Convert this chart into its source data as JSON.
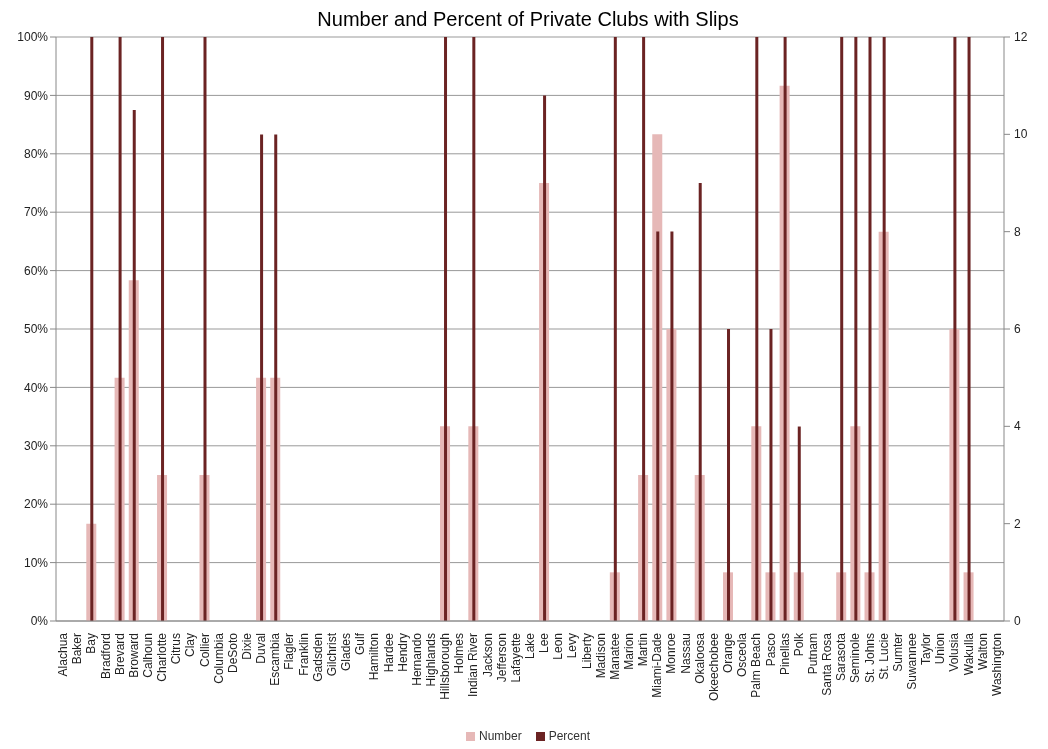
{
  "chart_data": {
    "type": "bar",
    "title": "Number and Percent of Private Clubs with Slips",
    "categories": [
      "Alachua",
      "Baker",
      "Bay",
      "Bradford",
      "Brevard",
      "Broward",
      "Calhoun",
      "Charlotte",
      "Citrus",
      "Clay",
      "Collier",
      "Columbia",
      "DeSoto",
      "Dixie",
      "Duval",
      "Escambia",
      "Flagler",
      "Franklin",
      "Gadsden",
      "Gilchrist",
      "Glades",
      "Gulf",
      "Hamilton",
      "Hardee",
      "Hendry",
      "Hernando",
      "Highlands",
      "Hillsborough",
      "Holmes",
      "Indian River",
      "Jackson",
      "Jefferson",
      "Lafayette",
      "Lake",
      "Lee",
      "Leon",
      "Levy",
      "Liberty",
      "Madison",
      "Manatee",
      "Marion",
      "Martin",
      "Miami-Dade",
      "Monroe",
      "Nassau",
      "Okaloosa",
      "Okeechobee",
      "Orange",
      "Osceola",
      "Palm Beach",
      "Pasco",
      "Pinellas",
      "Polk",
      "Putnam",
      "Santa Rosa",
      "Sarasota",
      "Seminole",
      "St. Johns",
      "St. Lucie",
      "Sumter",
      "Suwannee",
      "Taylor",
      "Union",
      "Volusia",
      "Wakulla",
      "Walton",
      "Washington"
    ],
    "series": [
      {
        "name": "Number",
        "color": "#e6b8b7",
        "axis": "y2",
        "values": [
          0,
          0,
          2,
          0,
          5,
          7,
          0,
          3,
          0,
          0,
          3,
          0,
          0,
          0,
          5,
          5,
          0,
          0,
          0,
          0,
          0,
          0,
          0,
          0,
          0,
          0,
          0,
          4,
          0,
          4,
          0,
          0,
          0,
          0,
          9,
          0,
          0,
          0,
          0,
          1,
          0,
          3,
          10,
          6,
          0,
          3,
          0,
          1,
          0,
          4,
          1,
          11,
          1,
          0,
          0,
          1,
          4,
          1,
          8,
          0,
          0,
          0,
          0,
          6,
          1,
          0,
          0
        ]
      },
      {
        "name": "Percent",
        "color": "#6b2323",
        "values": [
          0,
          0,
          100,
          0,
          100,
          87.5,
          0,
          100,
          0,
          0,
          100,
          0,
          0,
          0,
          83.3,
          83.3,
          0,
          0,
          0,
          0,
          0,
          0,
          0,
          0,
          0,
          0,
          0,
          100,
          0,
          100,
          0,
          0,
          0,
          0,
          90,
          0,
          0,
          0,
          0,
          100,
          0,
          100,
          66.7,
          66.7,
          0,
          75,
          0,
          50,
          0,
          100,
          50,
          100,
          33.3,
          0,
          0,
          100,
          100,
          100,
          100,
          0,
          0,
          0,
          0,
          100,
          100,
          0,
          0
        ]
      }
    ],
    "ylim": [
      0,
      100
    ],
    "yticks": [
      {
        "value": 0,
        "label": "0%"
      },
      {
        "value": 10,
        "label": "10%"
      },
      {
        "value": 20,
        "label": "20%"
      },
      {
        "value": 30,
        "label": "30%"
      },
      {
        "value": 40,
        "label": "40%"
      },
      {
        "value": 50,
        "label": "50%"
      },
      {
        "value": 60,
        "label": "60%"
      },
      {
        "value": 70,
        "label": "70%"
      },
      {
        "value": 80,
        "label": "80%"
      },
      {
        "value": 90,
        "label": "90%"
      },
      {
        "value": 100,
        "label": "100%"
      }
    ],
    "y2lim": [
      0,
      12
    ],
    "y2ticks": [
      0,
      2,
      4,
      6,
      8,
      10,
      12
    ],
    "grid": "y",
    "legend": "bottom"
  }
}
